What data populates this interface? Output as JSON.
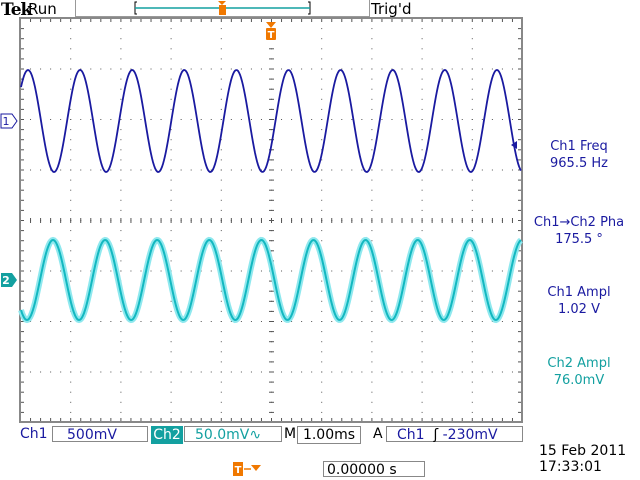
{
  "header": {
    "brand": "Tek",
    "run_state": "Run",
    "trigger_state": "Trig'd",
    "trigger_marker": "T"
  },
  "channels": [
    {
      "label": "Ch1",
      "marker": "1",
      "scale": "500mV",
      "color": "#1a1aa0"
    },
    {
      "label": "Ch2",
      "marker": "2",
      "scale": "50.0mV",
      "coupling_icon": "∿",
      "color": "#13a0a0"
    }
  ],
  "timebase": {
    "prefix": "M",
    "value": "1.00ms"
  },
  "trigger": {
    "prefix": "A",
    "source": "Ch1",
    "slope_icon": "ʃ",
    "level": "-230mV"
  },
  "measurements": [
    {
      "name": "Ch1 Freq",
      "value": "965.5 Hz",
      "color": "#1a1aa0"
    },
    {
      "name": "Ch1→Ch2 Pha",
      "value": "175.5 °",
      "color": "#1a1aa0"
    },
    {
      "name": "Ch1 Ampl",
      "value": "1.02 V",
      "color": "#1a1aa0"
    },
    {
      "name": "Ch2 Ampl",
      "value": "76.0mV",
      "color": "#13a0a0"
    }
  ],
  "trigger_position": {
    "value": "0.00000 s"
  },
  "datetime": {
    "date": "15 Feb  2011",
    "time": "17:33:01"
  },
  "accent": "#f07800"
}
